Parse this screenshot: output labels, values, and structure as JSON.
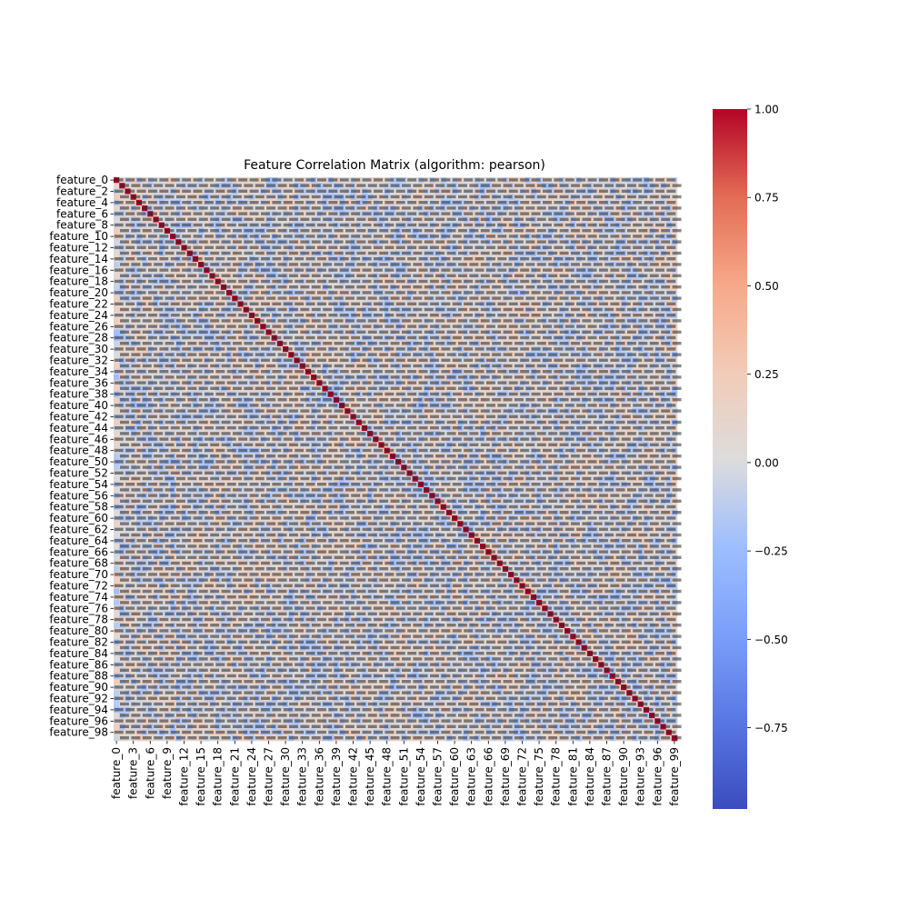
{
  "chart_data": {
    "type": "heatmap",
    "title": "Feature Correlation Matrix (algorithm: pearson)",
    "xlabel": "",
    "ylabel": "",
    "n_features": 100,
    "y_tick_labels": [
      "feature_0",
      "feature_2",
      "feature_4",
      "feature_6",
      "feature_8",
      "feature_10",
      "feature_12",
      "feature_14",
      "feature_16",
      "feature_18",
      "feature_20",
      "feature_22",
      "feature_24",
      "feature_26",
      "feature_28",
      "feature_30",
      "feature_32",
      "feature_34",
      "feature_36",
      "feature_38",
      "feature_40",
      "feature_42",
      "feature_44",
      "feature_46",
      "feature_48",
      "feature_50",
      "feature_52",
      "feature_54",
      "feature_56",
      "feature_58",
      "feature_60",
      "feature_62",
      "feature_64",
      "feature_66",
      "feature_68",
      "feature_70",
      "feature_72",
      "feature_74",
      "feature_76",
      "feature_78",
      "feature_80",
      "feature_82",
      "feature_84",
      "feature_86",
      "feature_88",
      "feature_90",
      "feature_92",
      "feature_94",
      "feature_96",
      "feature_98"
    ],
    "x_tick_labels": [
      "feature_0",
      "feature_3",
      "feature_6",
      "feature_9",
      "feature_12",
      "feature_15",
      "feature_18",
      "feature_21",
      "feature_24",
      "feature_27",
      "feature_30",
      "feature_33",
      "feature_36",
      "feature_39",
      "feature_42",
      "feature_45",
      "feature_48",
      "feature_51",
      "feature_54",
      "feature_57",
      "feature_60",
      "feature_63",
      "feature_66",
      "feature_69",
      "feature_72",
      "feature_75",
      "feature_78",
      "feature_81",
      "feature_84",
      "feature_87",
      "feature_90",
      "feature_93",
      "feature_96",
      "feature_99"
    ],
    "diagonal_value": 1.0,
    "value_range": [
      -0.98,
      1.0
    ],
    "colormap": "coolwarm",
    "cell_annotations": true,
    "colorbar": {
      "ticks": [
        1.0,
        0.75,
        0.5,
        0.25,
        0.0,
        -0.25,
        -0.5,
        -0.75
      ],
      "tick_labels": [
        "1.00",
        "0.75",
        "0.50",
        "0.25",
        "0.00",
        "−0.25",
        "−0.50",
        "−0.75"
      ],
      "range": [
        -0.98,
        1.0
      ]
    },
    "grid": false,
    "legend": "colorbar-right"
  },
  "colors": {
    "coolwarm_low": "#3b4cc0",
    "coolwarm_mid": "#dddddd",
    "coolwarm_high": "#b40426",
    "annotation_dark": "#262626"
  }
}
